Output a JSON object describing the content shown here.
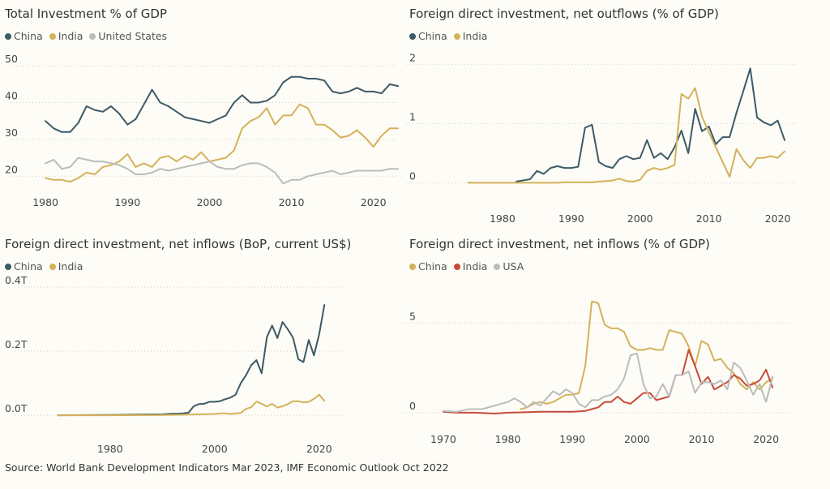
{
  "chart_data": [
    {
      "type": "line",
      "title": "Total Investment % of GDP",
      "legend": "top-left",
      "grid": "horizontal-dotted",
      "xlim": [
        1979,
        2023
      ],
      "ylim": [
        15,
        52
      ],
      "xticks": [
        1980,
        1990,
        2000,
        2010,
        2020
      ],
      "yticks": [
        20,
        30,
        40,
        50
      ],
      "series": [
        {
          "name": "China",
          "color": "#3d5a66",
          "x": [
            1980,
            1981,
            1982,
            1983,
            1984,
            1985,
            1986,
            1987,
            1988,
            1989,
            1990,
            1991,
            1992,
            1993,
            1994,
            1995,
            1996,
            1997,
            1998,
            1999,
            2000,
            2001,
            2002,
            2003,
            2004,
            2005,
            2006,
            2007,
            2008,
            2009,
            2010,
            2011,
            2012,
            2013,
            2014,
            2015,
            2016,
            2017,
            2018,
            2019,
            2020,
            2021,
            2022,
            2023
          ],
          "y": [
            35,
            33,
            32,
            32,
            34.5,
            39,
            38,
            37.5,
            39,
            37,
            34,
            35.5,
            39.5,
            43.5,
            40,
            39,
            37.5,
            36,
            35.5,
            35,
            34.5,
            35.5,
            36.5,
            40,
            42,
            40,
            40,
            40.5,
            42,
            45.5,
            47,
            47,
            46.5,
            46.5,
            46,
            43,
            42.5,
            43,
            44,
            43,
            43,
            42.5,
            45,
            44.5
          ]
        },
        {
          "name": "India",
          "color": "#d4b25a",
          "x": [
            1980,
            1981,
            1982,
            1983,
            1984,
            1985,
            1986,
            1987,
            1988,
            1989,
            1990,
            1991,
            1992,
            1993,
            1994,
            1995,
            1996,
            1997,
            1998,
            1999,
            2000,
            2001,
            2002,
            2003,
            2004,
            2005,
            2006,
            2007,
            2008,
            2009,
            2010,
            2011,
            2012,
            2013,
            2014,
            2015,
            2016,
            2017,
            2018,
            2019,
            2020,
            2021,
            2022,
            2023
          ],
          "y": [
            19.5,
            19,
            19,
            18.5,
            19.5,
            21,
            20.5,
            22.5,
            23,
            24,
            26,
            22.5,
            23.5,
            22.5,
            25,
            25.5,
            24,
            25.5,
            24.5,
            26.5,
            24,
            24.5,
            25,
            27,
            33,
            35,
            36,
            38.5,
            34,
            36.5,
            36.5,
            39.5,
            38.5,
            34,
            34,
            32.5,
            30.5,
            31,
            32.5,
            30.5,
            28,
            31,
            33,
            33
          ]
        },
        {
          "name": "United States",
          "color": "#bcbcbc",
          "x": [
            1980,
            1981,
            1982,
            1983,
            1984,
            1985,
            1986,
            1987,
            1988,
            1989,
            1990,
            1991,
            1992,
            1993,
            1994,
            1995,
            1996,
            1997,
            1998,
            1999,
            2000,
            2001,
            2002,
            2003,
            2004,
            2005,
            2006,
            2007,
            2008,
            2009,
            2010,
            2011,
            2012,
            2013,
            2014,
            2015,
            2016,
            2017,
            2018,
            2019,
            2020,
            2021,
            2022,
            2023
          ],
          "y": [
            23.5,
            24.5,
            22,
            22.5,
            25,
            24.5,
            24,
            24,
            23.5,
            23,
            22,
            20.5,
            20.5,
            21,
            22,
            21.5,
            22,
            22.5,
            23,
            23.5,
            24,
            22.5,
            22,
            22,
            23,
            23.5,
            23.5,
            22.5,
            21,
            18,
            19,
            19,
            20,
            20.5,
            21,
            21.5,
            20.5,
            21,
            21.5,
            21.5,
            21.5,
            21.5,
            22,
            22
          ]
        }
      ]
    },
    {
      "type": "line",
      "title": "Foreign direct investment, net outflows (% of GDP)",
      "legend": "top-left",
      "grid": "horizontal-dotted",
      "xlim": [
        1970,
        2023
      ],
      "ylim": [
        -0.2,
        2.1
      ],
      "xticks": [
        1980,
        1990,
        2000,
        2010,
        2020
      ],
      "yticks": [
        0,
        1,
        2
      ],
      "series": [
        {
          "name": "China",
          "color": "#3d5a66",
          "x": [
            1982,
            1983,
            1984,
            1985,
            1986,
            1987,
            1988,
            1989,
            1990,
            1991,
            1992,
            1993,
            1994,
            1995,
            1996,
            1997,
            1998,
            1999,
            2000,
            2001,
            2002,
            2003,
            2004,
            2005,
            2006,
            2007,
            2008,
            2009,
            2010,
            2011,
            2012,
            2013,
            2014,
            2015,
            2016,
            2017,
            2018,
            2019,
            2020,
            2021
          ],
          "y": [
            0.02,
            0.04,
            0.06,
            0.2,
            0.15,
            0.25,
            0.28,
            0.25,
            0.25,
            0.27,
            0.93,
            0.98,
            0.35,
            0.28,
            0.25,
            0.4,
            0.45,
            0.4,
            0.42,
            0.72,
            0.42,
            0.5,
            0.4,
            0.6,
            0.88,
            0.5,
            1.25,
            0.87,
            0.95,
            0.65,
            0.77,
            0.77,
            1.18,
            1.55,
            1.93,
            1.1,
            1.02,
            0.97,
            1.05,
            0.72
          ]
        },
        {
          "name": "India",
          "color": "#d4b25a",
          "x": [
            1975,
            1976,
            1977,
            1978,
            1979,
            1980,
            1981,
            1982,
            1983,
            1984,
            1985,
            1986,
            1987,
            1988,
            1989,
            1990,
            1991,
            1992,
            1993,
            1994,
            1995,
            1996,
            1997,
            1998,
            1999,
            2000,
            2001,
            2002,
            2003,
            2004,
            2005,
            2006,
            2007,
            2008,
            2009,
            2010,
            2011,
            2012,
            2013,
            2014,
            2015,
            2016,
            2017,
            2018,
            2019,
            2020,
            2021
          ],
          "y": [
            0,
            0,
            0,
            0,
            0,
            0,
            0,
            0,
            0,
            0,
            0,
            0,
            0,
            0,
            0.01,
            0.01,
            0.01,
            0.01,
            0.01,
            0.02,
            0.03,
            0.04,
            0.07,
            0.03,
            0.02,
            0.05,
            0.2,
            0.25,
            0.22,
            0.25,
            0.3,
            1.5,
            1.42,
            1.6,
            1.12,
            0.85,
            0.6,
            0.35,
            0.1,
            0.57,
            0.38,
            0.25,
            0.42,
            0.42,
            0.45,
            0.42,
            0.53
          ]
        }
      ]
    },
    {
      "type": "line",
      "title": "Foreign direct investment, net inflows (BoP, current US$)",
      "legend": "top-left",
      "grid": "horizontal-dotted",
      "xlim": [
        1967,
        2025
      ],
      "ylim": [
        -0.02,
        0.4
      ],
      "xticks": [
        1980,
        2000,
        2020
      ],
      "yticks": [
        0,
        0.2,
        0.4
      ],
      "ytick_labels": [
        "0.0T",
        "0.2T",
        "0.4T"
      ],
      "series": [
        {
          "name": "China",
          "color": "#3d5a66",
          "x": [
            1970,
            1980,
            1985,
            1990,
            1991,
            1992,
            1993,
            1994,
            1995,
            1996,
            1997,
            1998,
            1999,
            2000,
            2001,
            2002,
            2003,
            2004,
            2005,
            2006,
            2007,
            2008,
            2009,
            2010,
            2011,
            2012,
            2013,
            2014,
            2015,
            2016,
            2017,
            2018,
            2019,
            2020,
            2021
          ],
          "y": [
            0,
            0.001,
            0.002,
            0.003,
            0.004,
            0.005,
            0.005,
            0.006,
            0.008,
            0.028,
            0.035,
            0.036,
            0.042,
            0.042,
            0.044,
            0.05,
            0.055,
            0.064,
            0.1,
            0.125,
            0.156,
            0.172,
            0.131,
            0.244,
            0.28,
            0.241,
            0.291,
            0.268,
            0.242,
            0.175,
            0.166,
            0.235,
            0.187,
            0.253,
            0.344
          ]
        },
        {
          "name": "India",
          "color": "#d4b25a",
          "x": [
            1970,
            1980,
            1990,
            1995,
            2000,
            2001,
            2002,
            2003,
            2004,
            2005,
            2006,
            2007,
            2008,
            2009,
            2010,
            2011,
            2012,
            2013,
            2014,
            2015,
            2016,
            2017,
            2018,
            2019,
            2020,
            2021
          ],
          "y": [
            0,
            0,
            0.001,
            0.002,
            0.004,
            0.006,
            0.006,
            0.004,
            0.006,
            0.007,
            0.02,
            0.025,
            0.043,
            0.036,
            0.027,
            0.036,
            0.024,
            0.028,
            0.035,
            0.044,
            0.044,
            0.04,
            0.042,
            0.051,
            0.064,
            0.045
          ]
        }
      ]
    },
    {
      "type": "line",
      "title": "Foreign direct investment, net inflows (% of GDP)",
      "legend": "top-left",
      "grid": "horizontal-dotted",
      "xlim": [
        1968,
        2024
      ],
      "ylim": [
        -0.5,
        7
      ],
      "xticks": [
        1970,
        1980,
        1990,
        2000,
        2010,
        2020
      ],
      "yticks": [
        0,
        5
      ],
      "series": [
        {
          "name": "China",
          "color": "#d4b25a",
          "x": [
            1982,
            1983,
            1984,
            1985,
            1986,
            1987,
            1988,
            1989,
            1990,
            1991,
            1992,
            1993,
            1994,
            1995,
            1996,
            1997,
            1998,
            1999,
            2000,
            2001,
            2002,
            2003,
            2004,
            2005,
            2006,
            2007,
            2008,
            2009,
            2010,
            2011,
            2012,
            2013,
            2014,
            2015,
            2016,
            2017,
            2018,
            2019,
            2020,
            2021
          ],
          "y": [
            0.2,
            0.3,
            0.5,
            0.6,
            0.5,
            0.6,
            0.8,
            1,
            1,
            1.1,
            2.6,
            6.2,
            6.1,
            4.9,
            4.7,
            4.7,
            4.5,
            3.7,
            3.5,
            3.5,
            3.6,
            3.5,
            3.5,
            4.6,
            4.5,
            4.4,
            3.7,
            2.6,
            4,
            3.8,
            2.9,
            3,
            2.5,
            2.2,
            1.6,
            1.3,
            1.7,
            1.3,
            1.7,
            1.9
          ]
        },
        {
          "name": "India",
          "color": "#c84b3a",
          "x": [
            1970,
            1972,
            1975,
            1978,
            1980,
            1982,
            1985,
            1988,
            1990,
            1992,
            1993,
            1994,
            1995,
            1996,
            1997,
            1998,
            1999,
            2000,
            2001,
            2002,
            2003,
            2004,
            2005,
            2006,
            2007,
            2008,
            2009,
            2010,
            2011,
            2012,
            2013,
            2014,
            2015,
            2016,
            2017,
            2018,
            2019,
            2020,
            2021
          ],
          "y": [
            0.05,
            0,
            0,
            -0.05,
            0,
            0.02,
            0.05,
            0.05,
            0.05,
            0.1,
            0.2,
            0.3,
            0.6,
            0.6,
            0.9,
            0.6,
            0.5,
            0.8,
            1.1,
            1.1,
            0.7,
            0.8,
            0.9,
            2.1,
            2.1,
            3.5,
            2.6,
            1.6,
            2,
            1.3,
            1.5,
            1.7,
            2.1,
            1.9,
            1.5,
            1.6,
            1.8,
            2.4,
            1.4
          ]
        },
        {
          "name": "USA",
          "color": "#bcbcbc",
          "x": [
            1970,
            1972,
            1974,
            1976,
            1978,
            1980,
            1981,
            1982,
            1983,
            1984,
            1985,
            1986,
            1987,
            1988,
            1989,
            1990,
            1991,
            1992,
            1993,
            1994,
            1995,
            1996,
            1997,
            1998,
            1999,
            2000,
            2001,
            2002,
            2003,
            2004,
            2005,
            2006,
            2007,
            2008,
            2009,
            2010,
            2011,
            2012,
            2013,
            2014,
            2015,
            2016,
            2017,
            2018,
            2019,
            2020,
            2021
          ],
          "y": [
            0.1,
            0.05,
            0.2,
            0.2,
            0.4,
            0.6,
            0.8,
            0.6,
            0.3,
            0.6,
            0.4,
            0.8,
            1.2,
            1,
            1.3,
            1.1,
            0.5,
            0.3,
            0.7,
            0.7,
            0.9,
            1,
            1.3,
            1.9,
            3.2,
            3.3,
            1.6,
            0.8,
            0.9,
            1.6,
            0.9,
            2.1,
            2.1,
            2.3,
            1.1,
            1.7,
            1.7,
            1.6,
            1.8,
            1.3,
            2.8,
            2.5,
            1.8,
            1,
            1.6,
            0.6,
            2
          ]
        }
      ]
    }
  ],
  "footer": {
    "source": "Source: World Bank Development Indicators Mar 2023, IMF Economic Outlook Oct 2022"
  }
}
